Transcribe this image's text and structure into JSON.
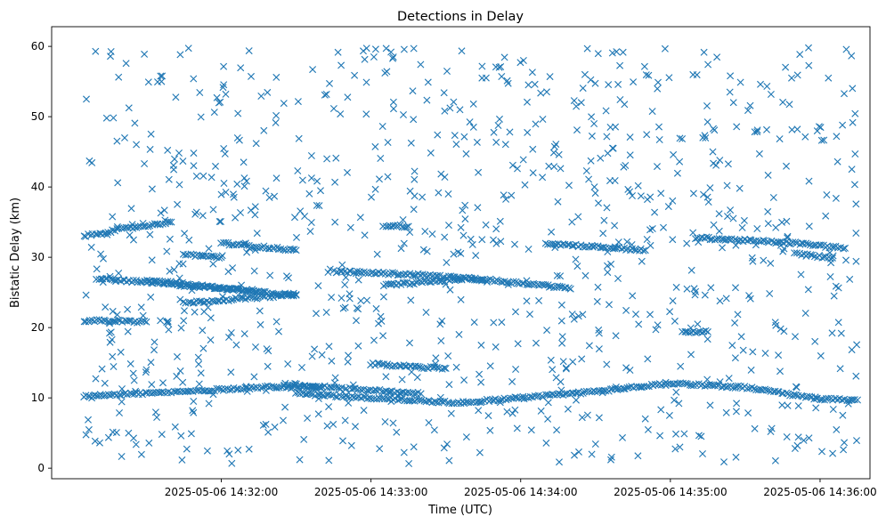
{
  "chart_data": {
    "type": "scatter",
    "title": "Detections in Delay",
    "xlabel": "Time (UTC)",
    "ylabel": "Bistatic Delay (km)",
    "x_is_time": true,
    "xlim": [
      "2025-05-06 14:30:52",
      "2025-05-06 14:36:20"
    ],
    "ylim": [
      -1.5,
      62.8
    ],
    "grid": false,
    "legend": "none",
    "marker": "x",
    "color": "#1f77b4",
    "xticks": [
      "2025-05-06 14:32:00",
      "2025-05-06 14:33:00",
      "2025-05-06 14:34:00",
      "2025-05-06 14:35:00",
      "2025-05-06 14:36:00"
    ],
    "yticks": [
      0,
      10,
      20,
      30,
      40,
      50,
      60
    ],
    "tracks": [
      {
        "points": [
          [
            "2025-05-06 14:31:05",
            10.3
          ],
          [
            "2025-05-06 14:31:40",
            10.8
          ],
          [
            "2025-05-06 14:32:20",
            11.6
          ],
          [
            "2025-05-06 14:32:40",
            11.4
          ]
        ]
      },
      {
        "points": [
          [
            "2025-05-06 14:32:25",
            12.0
          ],
          [
            "2025-05-06 14:33:20",
            10.6
          ]
        ]
      },
      {
        "points": [
          [
            "2025-05-06 14:32:30",
            10.6
          ],
          [
            "2025-05-06 14:33:35",
            9.3
          ],
          [
            "2025-05-06 14:34:30",
            10.9
          ],
          [
            "2025-05-06 14:35:00",
            12.1
          ],
          [
            "2025-05-06 14:35:30",
            11.5
          ],
          [
            "2025-05-06 14:36:00",
            9.8
          ],
          [
            "2025-05-06 14:36:15",
            9.7
          ]
        ]
      },
      {
        "points": [
          [
            "2025-05-06 14:33:00",
            14.8
          ],
          [
            "2025-05-06 14:33:30",
            14.2
          ]
        ]
      },
      {
        "points": [
          [
            "2025-05-06 14:31:05",
            33.0
          ],
          [
            "2025-05-06 14:31:20",
            34.0
          ],
          [
            "2025-05-06 14:31:40",
            35.0
          ]
        ]
      },
      {
        "points": [
          [
            "2025-05-06 14:31:05",
            21.0
          ],
          [
            "2025-05-06 14:31:30",
            20.8
          ]
        ]
      },
      {
        "points": [
          [
            "2025-05-06 14:31:10",
            27.0
          ],
          [
            "2025-05-06 14:31:45",
            26.0
          ],
          [
            "2025-05-06 14:32:15",
            25.2
          ]
        ]
      },
      {
        "points": [
          [
            "2025-05-06 14:31:30",
            26.8
          ],
          [
            "2025-05-06 14:31:55",
            25.8
          ],
          [
            "2025-05-06 14:32:30",
            24.6
          ]
        ]
      },
      {
        "points": [
          [
            "2025-05-06 14:31:45",
            23.5
          ],
          [
            "2025-05-06 14:32:15",
            24.3
          ],
          [
            "2025-05-06 14:32:30",
            24.7
          ]
        ]
      },
      {
        "points": [
          [
            "2025-05-06 14:31:45",
            30.4
          ],
          [
            "2025-05-06 14:32:00",
            30.0
          ]
        ]
      },
      {
        "points": [
          [
            "2025-05-06 14:32:00",
            32.0
          ],
          [
            "2025-05-06 14:32:30",
            31.0
          ]
        ]
      },
      {
        "points": [
          [
            "2025-05-06 14:32:45",
            28.0
          ],
          [
            "2025-05-06 14:33:20",
            27.5
          ],
          [
            "2025-05-06 14:33:45",
            26.8
          ]
        ]
      },
      {
        "points": [
          [
            "2025-05-06 14:33:05",
            26.0
          ],
          [
            "2025-05-06 14:33:40",
            27.0
          ],
          [
            "2025-05-06 14:34:10",
            26.0
          ],
          [
            "2025-05-06 14:34:20",
            25.5
          ]
        ]
      },
      {
        "points": [
          [
            "2025-05-06 14:33:05",
            34.5
          ],
          [
            "2025-05-06 14:33:15",
            34.4
          ]
        ]
      },
      {
        "points": [
          [
            "2025-05-06 14:34:10",
            32.0
          ],
          [
            "2025-05-06 14:34:50",
            31.0
          ]
        ]
      },
      {
        "points": [
          [
            "2025-05-06 14:35:05",
            19.3
          ],
          [
            "2025-05-06 14:35:15",
            19.4
          ]
        ]
      },
      {
        "points": [
          [
            "2025-05-06 14:35:10",
            32.8
          ],
          [
            "2025-05-06 14:35:50",
            32.0
          ],
          [
            "2025-05-06 14:36:10",
            31.3
          ]
        ]
      },
      {
        "points": [
          [
            "2025-05-06 14:35:50",
            30.5
          ],
          [
            "2025-05-06 14:36:05",
            29.9
          ]
        ]
      }
    ]
  }
}
